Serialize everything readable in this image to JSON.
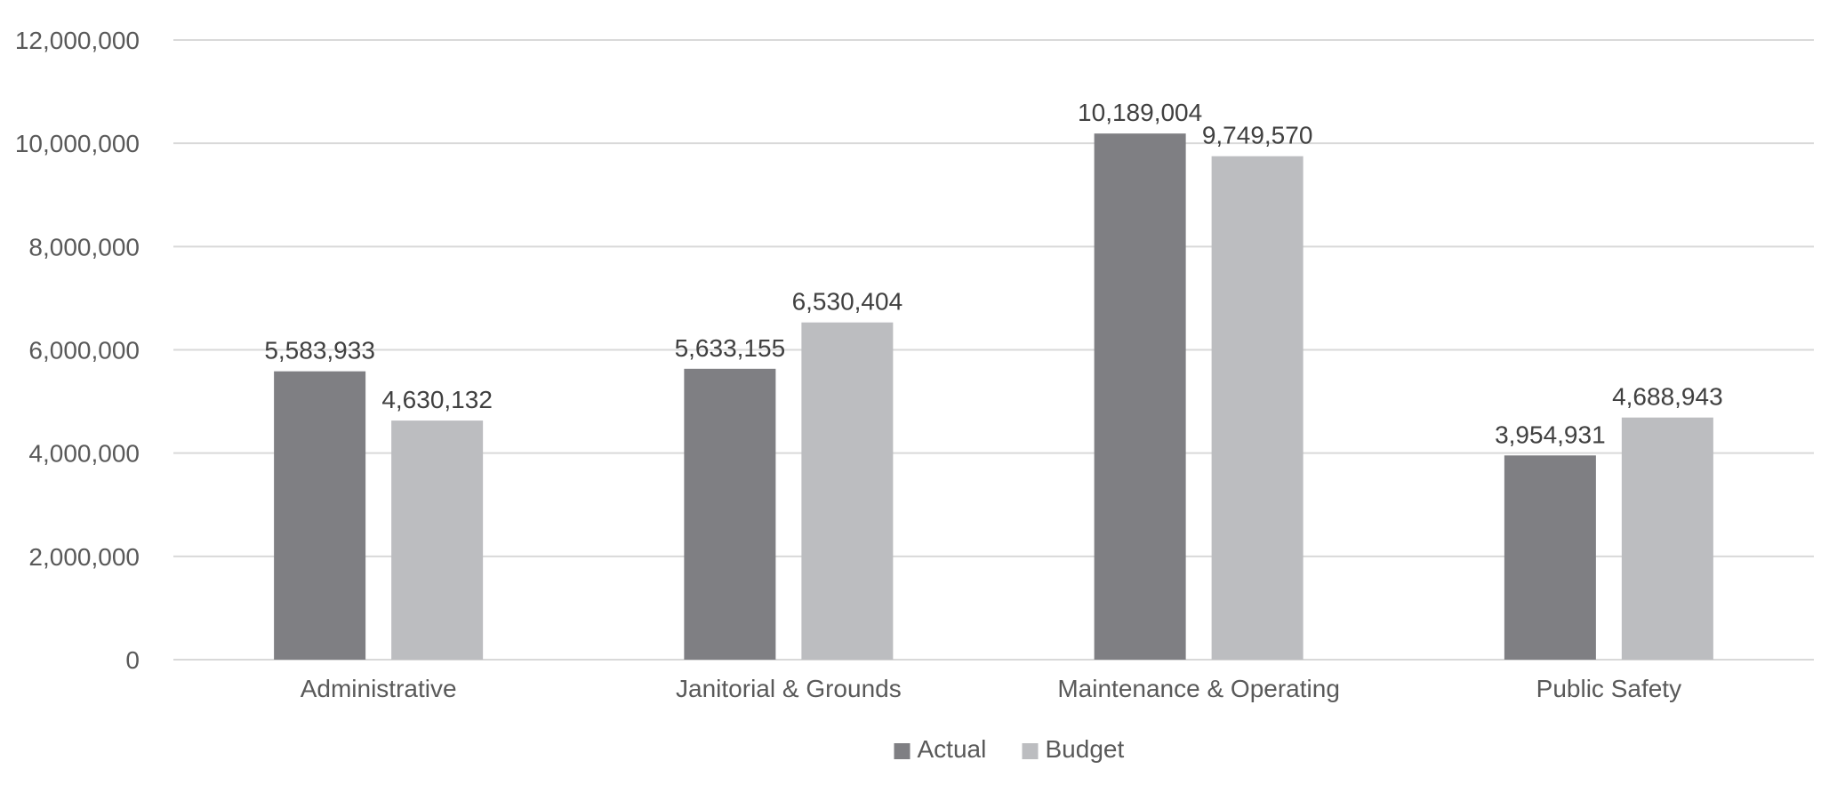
{
  "chart_data": {
    "type": "bar",
    "categories": [
      "Administrative",
      "Janitorial & Grounds",
      "Maintenance & Operating",
      "Public Safety"
    ],
    "series": [
      {
        "name": "Actual",
        "color": "#7f7f83",
        "values": [
          5583933,
          5633155,
          10189004,
          3954931
        ],
        "labels": [
          "5,583,933",
          "5,633,155",
          "10,189,004",
          "3,954,931"
        ]
      },
      {
        "name": "Budget",
        "color": "#bcbdc0",
        "values": [
          4630132,
          6530404,
          9749570,
          4688943
        ],
        "labels": [
          "4,630,132",
          "6,530,404",
          "9,749,570",
          "4,688,943"
        ]
      }
    ],
    "ylim": [
      0,
      12000000
    ],
    "yticks": [
      0,
      2000000,
      4000000,
      6000000,
      8000000,
      10000000,
      12000000
    ],
    "ytick_labels": [
      "0",
      "2,000,000",
      "4,000,000",
      "6,000,000",
      "8,000,000",
      "10,000,000",
      "12,000,000"
    ],
    "grid": true,
    "legend_position": "bottom",
    "title": "",
    "xlabel": "",
    "ylabel": ""
  }
}
